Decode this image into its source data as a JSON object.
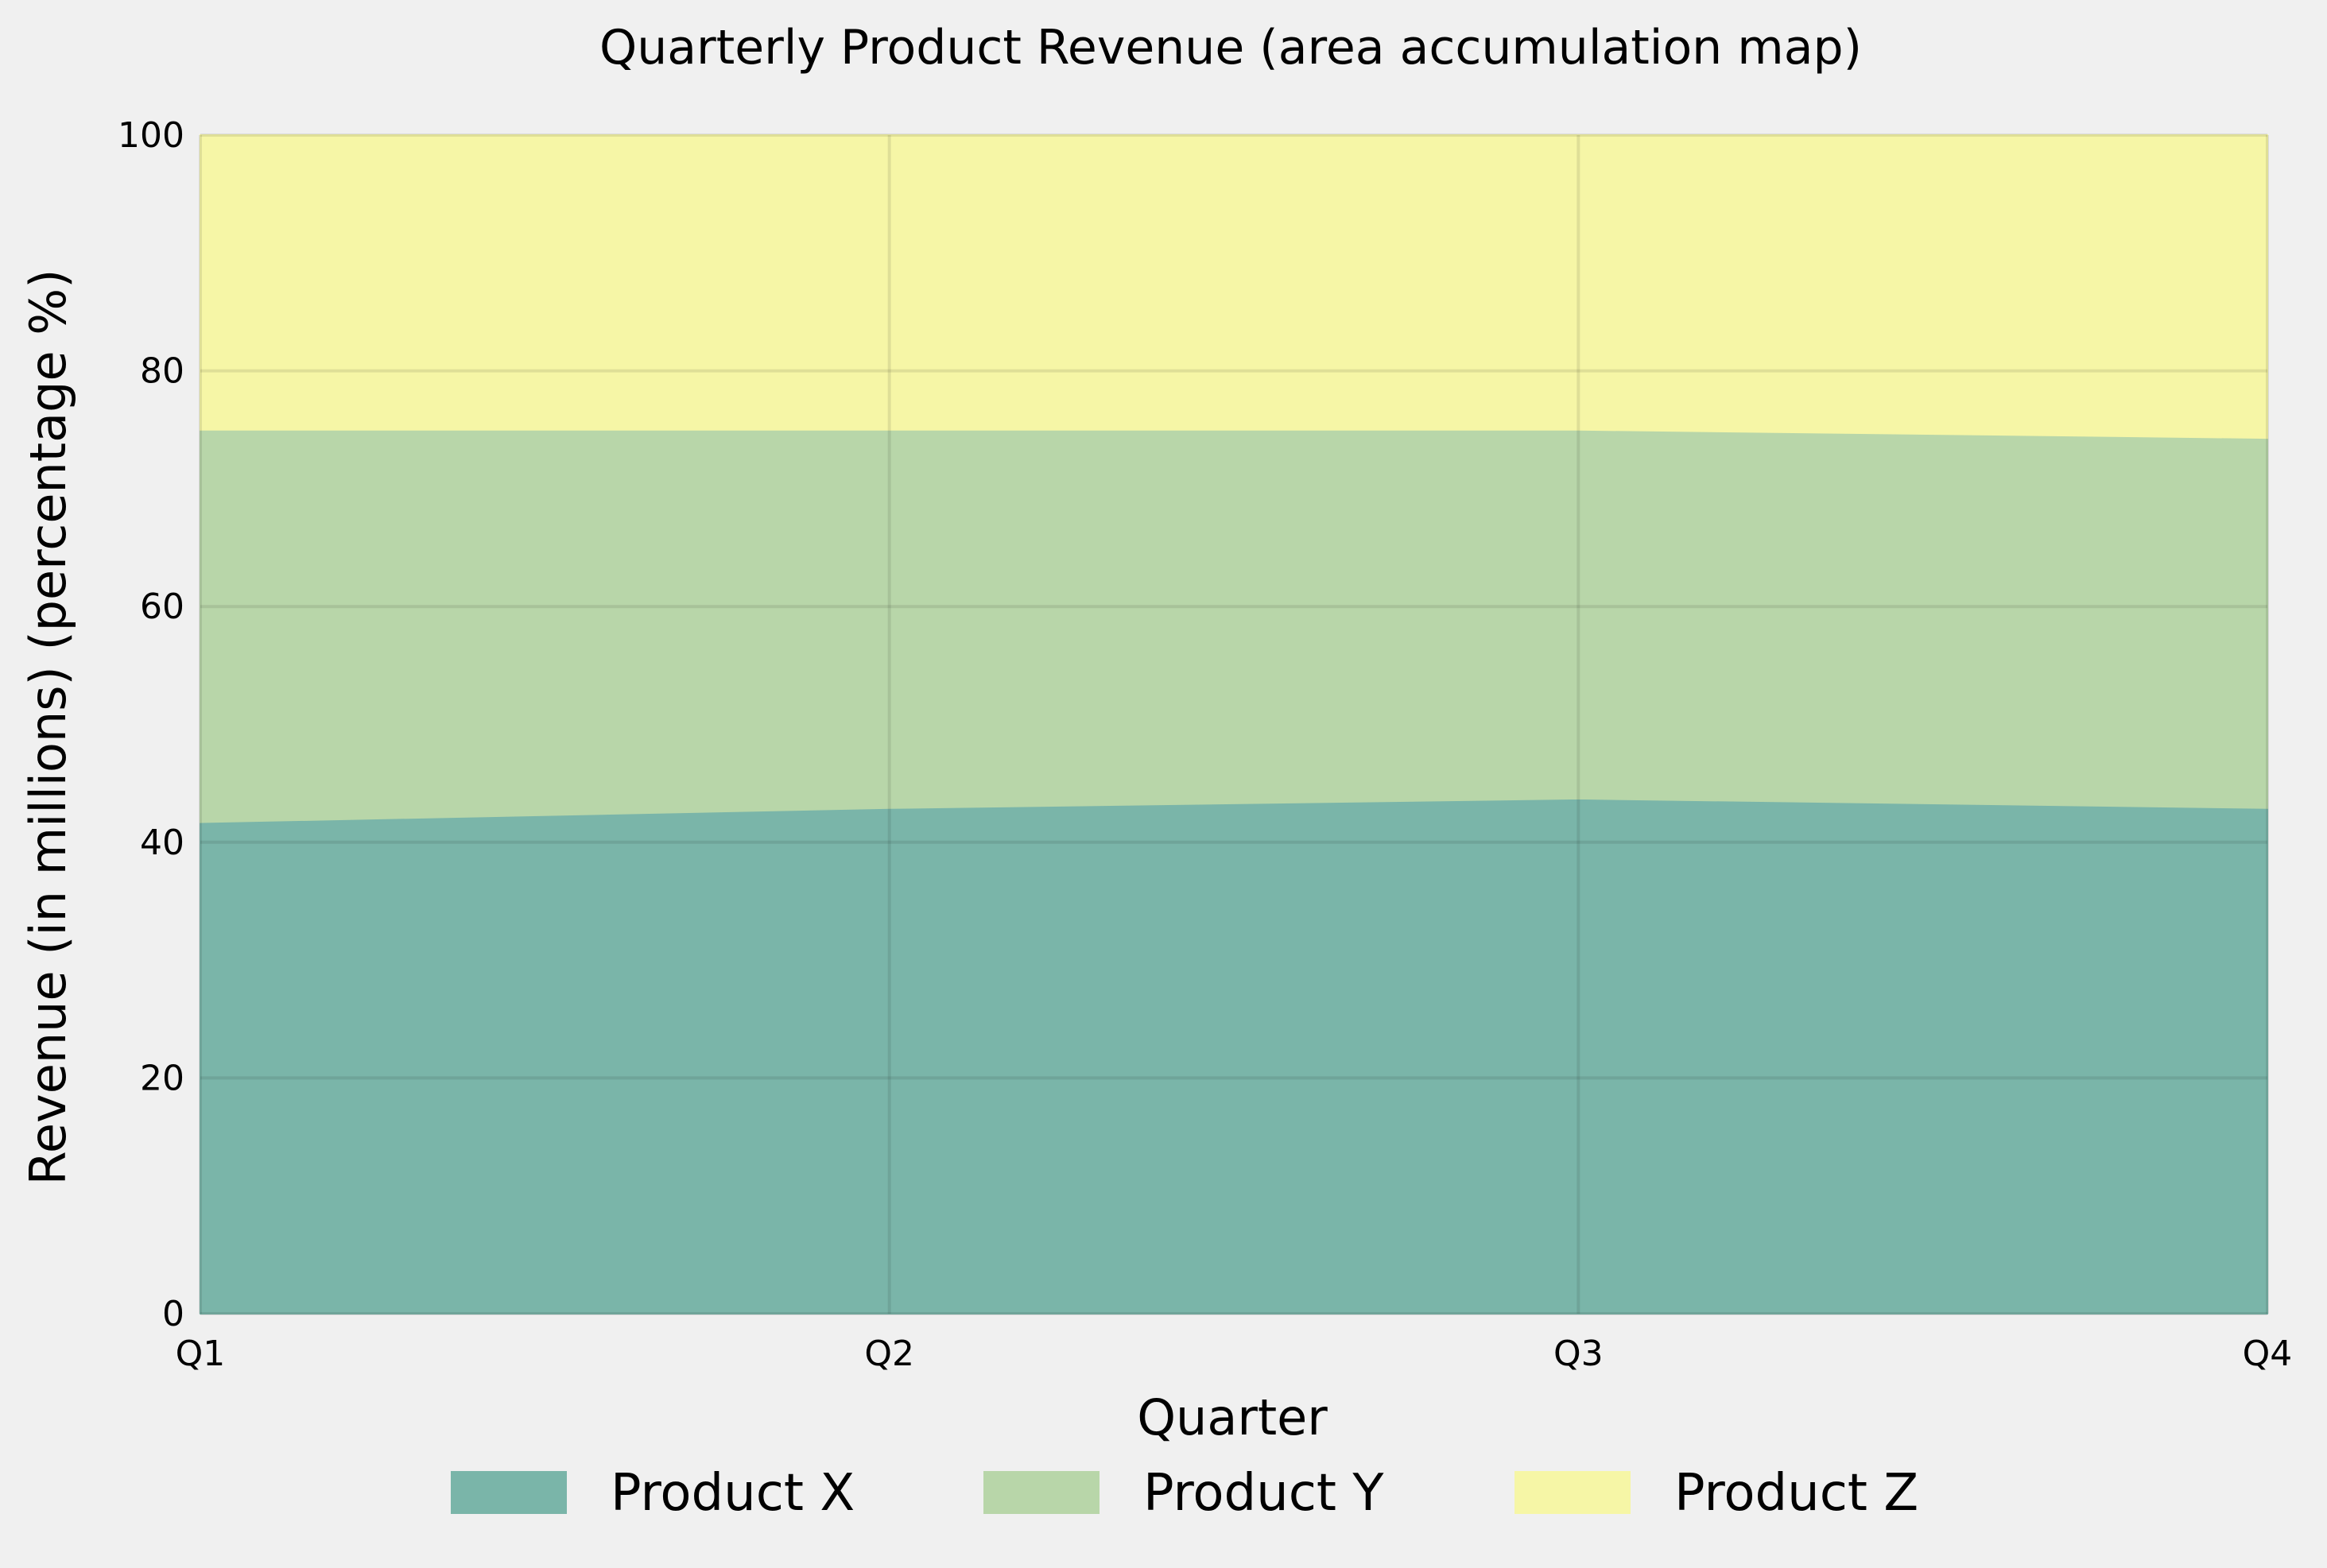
{
  "chart_data": {
    "type": "area",
    "stacked": true,
    "normalized": true,
    "title": "Quarterly Product Revenue (area accumulation map)",
    "xlabel": "Quarter",
    "ylabel": "Revenue (in millions) (percentage %)",
    "categories": [
      "Q1",
      "Q2",
      "Q3",
      "Q4"
    ],
    "ylim": [
      0,
      100
    ],
    "yticks": [
      0,
      20,
      40,
      60,
      80,
      100
    ],
    "grid": true,
    "legend_position": "bottom-center",
    "series": [
      {
        "name": "Product X",
        "values": [
          41.7,
          42.9,
          43.7,
          42.9
        ],
        "color": "#7ab5a9"
      },
      {
        "name": "Product Y",
        "values": [
          33.3,
          32.1,
          31.3,
          31.4
        ],
        "color": "#b8d6a9"
      },
      {
        "name": "Product Z",
        "values": [
          25.0,
          25.0,
          25.0,
          25.7
        ],
        "color": "#f6f6a6"
      }
    ]
  }
}
